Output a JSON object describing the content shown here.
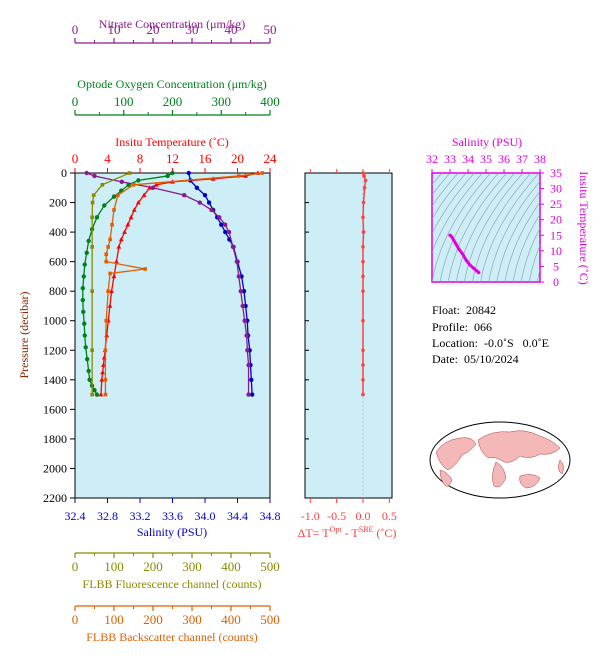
{
  "axes": {
    "nitrate": {
      "label": "Nitrate Concentration (μm/kg)",
      "ticks": [
        "0",
        "10",
        "20",
        "30",
        "40",
        "50"
      ],
      "range": [
        0,
        50
      ],
      "color": "#8b1a8b"
    },
    "oxygen": {
      "label": "Optode Oxygen Concentration (μm/kg)",
      "ticks": [
        "0",
        "100",
        "200",
        "300",
        "400"
      ],
      "range": [
        0,
        400
      ],
      "color": "#00801a"
    },
    "temperature": {
      "label": "Insitu Temperature (˚C)",
      "ticks": [
        "0",
        "4",
        "8",
        "12",
        "16",
        "20",
        "24"
      ],
      "range": [
        0,
        24
      ],
      "color": "#ff0000"
    },
    "pressure": {
      "label": "Pressure (decibar)",
      "ticks": [
        "0",
        "200",
        "400",
        "600",
        "800",
        "1000",
        "1200",
        "1400",
        "1600",
        "1800",
        "2000",
        "2200"
      ],
      "range": [
        0,
        2200
      ],
      "color": "#8b2500"
    },
    "salinity": {
      "label": "Salinity (PSU)",
      "ticks": [
        "32.4",
        "32.8",
        "33.2",
        "33.6",
        "34.0",
        "34.4",
        "34.8"
      ],
      "range": [
        32.4,
        34.8
      ],
      "color": "#0000cc"
    },
    "fluorescence": {
      "label": "FLBB Fluorescence channel (counts)",
      "ticks": [
        "0",
        "100",
        "200",
        "300",
        "400",
        "500"
      ],
      "range": [
        0,
        500
      ],
      "color": "#8b8b00"
    },
    "backscatter": {
      "label": "FLBB Backscatter channel (counts)",
      "ticks": [
        "0",
        "100",
        "200",
        "300",
        "400",
        "500"
      ],
      "range": [
        0,
        500
      ],
      "color": "#e06000"
    },
    "deltaT": {
      "label_main": "ΔT= T",
      "sup1": "Opt",
      "label_mid": " - T",
      "sup2": "SBE",
      "label_end": " (˚C)",
      "ticks": [
        "-1.0",
        "-0.5",
        "0.0",
        "0.5"
      ],
      "range": [
        -1.1,
        0.55
      ],
      "color": "#ff4040"
    },
    "ts_salinity": {
      "label": "Salinity (PSU)",
      "ticks": [
        "32",
        "33",
        "34",
        "35",
        "36",
        "37",
        "38"
      ],
      "range": [
        32,
        38
      ],
      "color": "#e000e0"
    },
    "ts_temperature": {
      "label": "Insitu Temperature (˚C)",
      "ticks": [
        "0",
        "5",
        "10",
        "15",
        "20",
        "25",
        "30",
        "35"
      ],
      "range": [
        0,
        35
      ],
      "color": "#e000e0"
    }
  },
  "info": {
    "float": "Float:  20842",
    "profile": "Profile:  066",
    "location": "Location:  -0.0˚S   0.0˚E",
    "date": "Date:  05/10/2024"
  },
  "colors": {
    "plot_bg": "#cdeef6",
    "land": "#f4b8b8",
    "ocean": "#ffffff"
  },
  "chart_data": [
    {
      "type": "line",
      "title": "",
      "y_axis": "Pressure (decibar)",
      "y_range": [
        0,
        2200
      ],
      "y_inverted": true,
      "grid": false,
      "series": [
        {
          "name": "Insitu Temperature (˚C)",
          "axis": "temperature",
          "color": "#ff0000",
          "x": [
            22.5,
            21,
            17,
            12,
            10,
            9.2,
            8.5,
            7.8,
            7.3,
            6.9,
            6.5,
            6.1,
            5.7,
            5.4,
            5.1,
            4.8,
            4.5,
            4.3,
            4.1,
            3.9,
            3.7,
            3.6,
            3.5,
            3.4,
            3.3,
            3.2
          ],
          "y": [
            0,
            20,
            40,
            60,
            80,
            100,
            150,
            200,
            250,
            300,
            350,
            400,
            450,
            500,
            600,
            700,
            800,
            900,
            1000,
            1100,
            1200,
            1250,
            1300,
            1350,
            1400,
            1500
          ]
        },
        {
          "name": "Salinity (PSU)",
          "axis": "salinity",
          "color": "#0000cc",
          "x": [
            33.8,
            33.82,
            33.9,
            34.0,
            34.05,
            34.1,
            34.15,
            34.2,
            34.25,
            34.3,
            34.35,
            34.4,
            34.45,
            34.48,
            34.5,
            34.52,
            34.53,
            34.55,
            34.56,
            34.57,
            34.58
          ],
          "y": [
            0,
            50,
            100,
            150,
            200,
            250,
            300,
            350,
            400,
            450,
            500,
            600,
            700,
            800,
            900,
            1000,
            1100,
            1200,
            1300,
            1400,
            1500
          ]
        },
        {
          "name": "Optode Oxygen Concentration (μm/kg)",
          "axis": "oxygen",
          "color": "#00801a",
          "x": [
            200,
            190,
            130,
            110,
            95,
            80,
            60,
            45,
            35,
            28,
            24,
            20,
            18,
            16,
            16,
            17,
            19,
            20,
            22,
            25,
            28,
            30,
            35,
            40,
            45
          ],
          "y": [
            0,
            20,
            50,
            80,
            120,
            160,
            220,
            300,
            380,
            460,
            540,
            620,
            700,
            780,
            860,
            940,
            1020,
            1100,
            1180,
            1260,
            1340,
            1400,
            1440,
            1470,
            1500
          ]
        },
        {
          "name": "Nitrate Concentration (μm/kg)",
          "axis": "nitrate",
          "color": "#8b1a8b",
          "x": [
            3,
            5,
            12,
            20,
            28,
            32,
            35,
            37,
            38.5,
            39.5,
            40.5,
            41.5,
            42,
            42.5,
            43,
            43.5,
            44,
            44.2,
            44.5,
            44.5
          ],
          "y": [
            0,
            20,
            60,
            100,
            150,
            200,
            250,
            300,
            350,
            400,
            500,
            600,
            700,
            800,
            900,
            1000,
            1100,
            1200,
            1300,
            1500
          ]
        },
        {
          "name": "FLBB Fluorescence channel (counts)",
          "axis": "fluorescence",
          "color": "#8b8b00",
          "x": [
            140,
            70,
            48,
            45,
            44,
            44,
            44,
            44,
            44
          ],
          "y": [
            0,
            80,
            150,
            200,
            300,
            500,
            800,
            1200,
            1500
          ]
        },
        {
          "name": "FLBB Backscatter channel (counts)",
          "axis": "backscatter",
          "color": "#e06000",
          "x": [
            480,
            420,
            150,
            110,
            100,
            95,
            90,
            85,
            80,
            80,
            180,
            90,
            85,
            80,
            78,
            78,
            78
          ],
          "y": [
            0,
            20,
            80,
            150,
            250,
            350,
            450,
            500,
            550,
            600,
            650,
            680,
            800,
            1000,
            1200,
            1400,
            1500
          ]
        }
      ]
    },
    {
      "type": "line",
      "title": "",
      "x_axis": "ΔT= T Opt - T SBE (˚C)",
      "x_range": [
        -1.1,
        0.55
      ],
      "y_range": [
        0,
        2200
      ],
      "series": [
        {
          "name": "ΔT",
          "color": "#ff4040",
          "x": [
            0.0,
            0.02,
            0.05,
            0.03,
            0.01,
            0.0,
            0.01,
            0.0,
            0.0,
            0.0,
            0.0,
            0.0,
            0.0,
            0.0,
            0.0,
            0.0
          ],
          "y": [
            0,
            20,
            50,
            100,
            200,
            300,
            400,
            500,
            600,
            700,
            800,
            1000,
            1200,
            1300,
            1400,
            1500
          ]
        }
      ]
    },
    {
      "type": "scatter",
      "title": "",
      "x_axis": "Salinity (PSU)",
      "y_axis": "Insitu Temperature (˚C)",
      "x_range": [
        32,
        38
      ],
      "y_range": [
        0,
        35
      ],
      "series": [
        {
          "name": "T-S",
          "color": "#e000e0",
          "x": [
            33.0,
            33.1,
            33.3,
            33.5,
            33.7,
            33.9,
            34.1,
            34.3,
            34.5,
            34.6
          ],
          "y": [
            15,
            14.5,
            12.5,
            10.5,
            9,
            7,
            5.5,
            4.5,
            3.5,
            3
          ]
        }
      ]
    }
  ]
}
